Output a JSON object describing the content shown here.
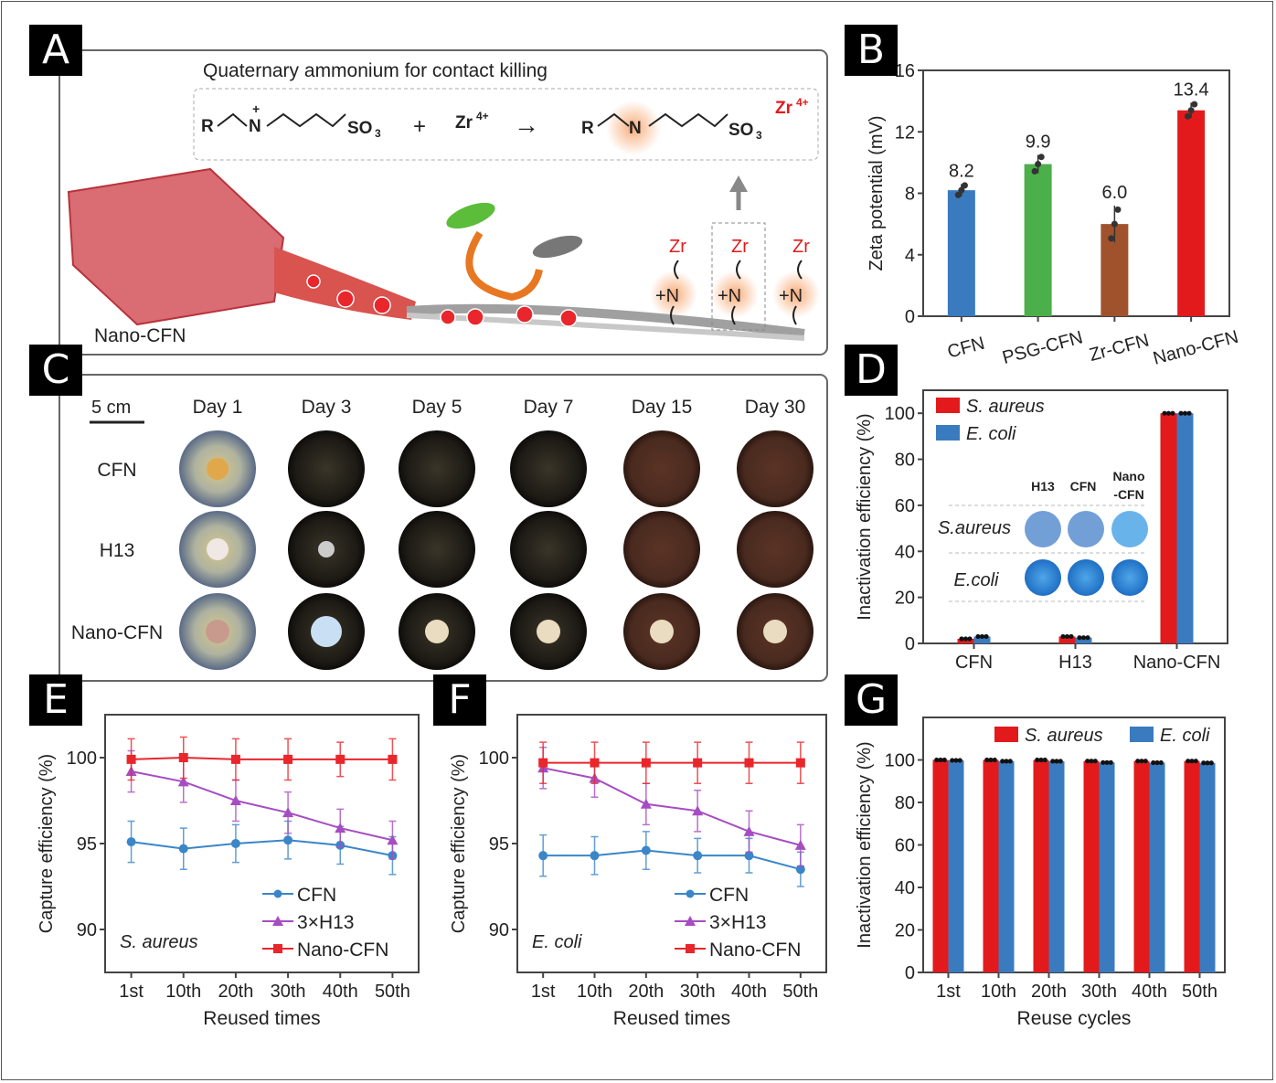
{
  "panels": {
    "A": "A",
    "B": "B",
    "C": "C",
    "D": "D",
    "E": "E",
    "F": "F",
    "G": "G"
  },
  "panel_a": {
    "title": "Quaternary ammonium for contact killing",
    "material_label": "Nano-CFN",
    "reaction": {
      "R": "R",
      "N": "N",
      "plus_charge": "+",
      "SO3": "SO",
      "sub3": "3",
      "minus": "−",
      "plus_sign": "+",
      "Zr": "Zr",
      "Zr_charge": "4+",
      "arrow": "→"
    },
    "pendant_labels": [
      "Zr",
      "Zr",
      "Zr"
    ],
    "pendant_N": [
      "+N",
      "+N",
      "+N"
    ]
  },
  "panel_c": {
    "scale": "5 cm",
    "columns": [
      "Day 1",
      "Day 3",
      "Day 5",
      "Day 7",
      "Day 15",
      "Day 30"
    ],
    "rows": [
      "CFN",
      "H13",
      "Nano-CFN"
    ]
  },
  "chart_data": [
    {
      "id": "B",
      "type": "bar",
      "ylabel": "Zeta potential (mV)",
      "ylim": [
        0,
        16
      ],
      "yticks": [
        0,
        4,
        8,
        12,
        16
      ],
      "categories": [
        "CFN",
        "PSG-CFN",
        "Zr-CFN",
        "Nano-CFN"
      ],
      "values": [
        8.2,
        9.9,
        6.0,
        13.4
      ],
      "data_labels": [
        "8.2",
        "9.9",
        "6.0",
        "13.4"
      ],
      "errors": [
        0.4,
        0.6,
        1.2,
        0.5
      ],
      "colors": [
        "#3a7bbf",
        "#4bb04a",
        "#a0522d",
        "#e31a1c"
      ]
    },
    {
      "id": "D",
      "type": "bar",
      "ylabel": "Inactivation efficiency (%)",
      "ylim": [
        0,
        110
      ],
      "yticks": [
        0,
        20,
        40,
        60,
        80,
        100
      ],
      "categories": [
        "CFN",
        "H13",
        "Nano-CFN"
      ],
      "series": [
        {
          "name": "S. aureus",
          "color": "#e31a1c",
          "values": [
            2,
            3,
            100
          ]
        },
        {
          "name": "E. coli",
          "color": "#3a7bbf",
          "values": [
            3,
            2.5,
            100
          ]
        }
      ],
      "legend": "top-left",
      "inset": {
        "columns": [
          "H13",
          "CFN",
          "Nano\n-CFN"
        ],
        "col1": "Nano",
        "col2": "-CFN",
        "rows": [
          "S.aureus",
          "E.coli"
        ]
      }
    },
    {
      "id": "E",
      "type": "line",
      "ylabel": "Capture efficiency (%)",
      "xlabel": "Reused times",
      "ylim": [
        87.5,
        102.5
      ],
      "yticks": [
        90,
        95,
        100
      ],
      "categories": [
        "1st",
        "10th",
        "20th",
        "30th",
        "40th",
        "50th"
      ],
      "annotation": "S. aureus",
      "legend": "bottom-right",
      "series": [
        {
          "name": "CFN",
          "color": "#3a86c8",
          "marker": "circle",
          "values": [
            95.1,
            94.7,
            95.0,
            95.2,
            94.9,
            94.3
          ],
          "errors": [
            1.2,
            1.2,
            1.1,
            1.1,
            1.1,
            1.1
          ]
        },
        {
          "name": "3×H13",
          "color": "#a64dc2",
          "marker": "triangle",
          "values": [
            99.2,
            98.6,
            97.5,
            96.8,
            95.9,
            95.2
          ],
          "errors": [
            1.2,
            1.2,
            1.2,
            1.2,
            1.1,
            1.1
          ]
        },
        {
          "name": "Nano-CFN",
          "color": "#e8262b",
          "marker": "square",
          "values": [
            99.9,
            100.0,
            99.9,
            99.9,
            99.9,
            99.9
          ],
          "errors": [
            1.2,
            1.2,
            1.2,
            1.2,
            1.0,
            1.2
          ]
        }
      ]
    },
    {
      "id": "F",
      "type": "line",
      "ylabel": "Capture efficiency (%)",
      "xlabel": "Reused times",
      "ylim": [
        87.5,
        102.5
      ],
      "yticks": [
        90,
        95,
        100
      ],
      "categories": [
        "1st",
        "10th",
        "20th",
        "30th",
        "40th",
        "50th"
      ],
      "annotation": "E. coli",
      "legend": "bottom-right",
      "series": [
        {
          "name": "CFN",
          "color": "#3a86c8",
          "marker": "circle",
          "values": [
            94.3,
            94.3,
            94.6,
            94.3,
            94.3,
            93.5
          ],
          "errors": [
            1.2,
            1.1,
            1.1,
            1.0,
            1.0,
            1.0
          ]
        },
        {
          "name": "3×H13",
          "color": "#a64dc2",
          "marker": "triangle",
          "values": [
            99.4,
            98.8,
            97.3,
            96.9,
            95.7,
            94.9
          ],
          "errors": [
            1.2,
            1.1,
            1.2,
            1.2,
            1.2,
            1.2
          ]
        },
        {
          "name": "Nano-CFN",
          "color": "#e8262b",
          "marker": "square",
          "values": [
            99.7,
            99.7,
            99.7,
            99.7,
            99.7,
            99.7
          ],
          "errors": [
            1.2,
            1.2,
            1.2,
            1.2,
            1.2,
            1.2
          ]
        }
      ]
    },
    {
      "id": "G",
      "type": "bar",
      "ylabel": "Inactivation efficiency (%)",
      "xlabel": "Reuse cycles",
      "ylim": [
        0,
        120
      ],
      "yticks": [
        0,
        20,
        40,
        60,
        80,
        100
      ],
      "categories": [
        "1st",
        "10th",
        "20th",
        "30th",
        "40th",
        "50th"
      ],
      "legend": "top-right",
      "series": [
        {
          "name": "S. aureus",
          "color": "#e31a1c",
          "values": [
            100,
            100,
            100,
            99.5,
            99.5,
            99.5
          ]
        },
        {
          "name": "E. coli",
          "color": "#3a7bbf",
          "values": [
            99.8,
            99.4,
            99.4,
            98.8,
            98.7,
            98.6
          ]
        }
      ]
    }
  ]
}
